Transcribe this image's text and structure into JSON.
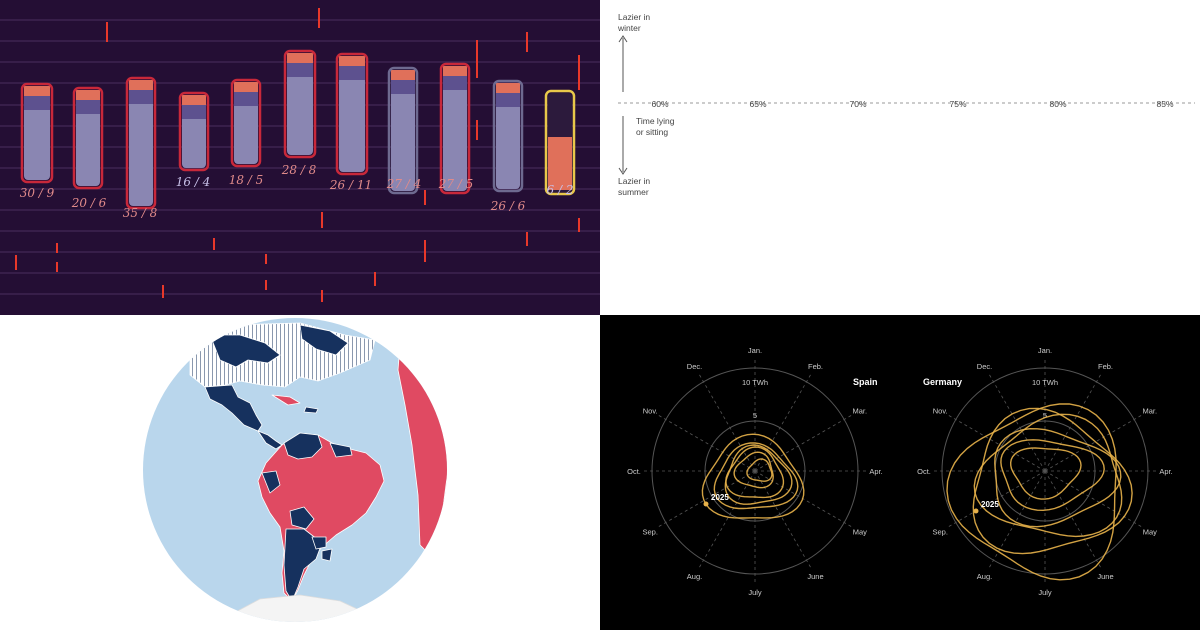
{
  "panels": {
    "bars": {
      "labels": [
        "30 / 9",
        "20 / 6",
        "35 / 8",
        "16 / 4",
        "18 / 5",
        "28 / 8",
        "26 / 11",
        "27 / 4",
        "27 / 5",
        "26 / 6",
        "6 / 2"
      ],
      "colors": {
        "bg": "#240e34",
        "frame": "#c8283a",
        "frame_grey": "#6e6a90",
        "highlight": "#e8c84a",
        "tick": "#e8382a",
        "top": "#e0705a",
        "fill": "#8a86b2",
        "label": "#e08a8a",
        "label_highlight": "#c8c0e8"
      }
    },
    "cats": {
      "y_top_label": [
        "Lazier in",
        "winter"
      ],
      "y_mid_label": [
        "Time lying",
        "or sitting"
      ],
      "y_bottom_label": [
        "Lazier in",
        "summer"
      ],
      "ticks": [
        "60%",
        "65%",
        "70%",
        "75%",
        "80%",
        "85%"
      ],
      "colors": {
        "blue": "#2aaac8",
        "green": "#aecb5a",
        "outline": "#1a1a1a",
        "axis": "#888888"
      }
    },
    "globe": {
      "colors": {
        "ocean": "#b9d6ec",
        "red": "#e04a62",
        "navy": "#16315e",
        "white": "#f4f4f4",
        "border": "#ffffff"
      }
    },
    "radial": {
      "charts": [
        {
          "title": "Spain",
          "marker": "2025"
        },
        {
          "title": "Germany",
          "marker": "2025"
        }
      ],
      "months": [
        "Jan.",
        "Feb.",
        "Mar.",
        "Apr.",
        "May",
        "June",
        "July",
        "Aug.",
        "Sep.",
        "Oct.",
        "Nov.",
        "Dec."
      ],
      "ring_labels": [
        "10 TWh",
        "5"
      ],
      "colors": {
        "bg": "#000000",
        "line": "#e8b24a",
        "grid": "#555555",
        "text": "#cccccc"
      }
    }
  }
}
